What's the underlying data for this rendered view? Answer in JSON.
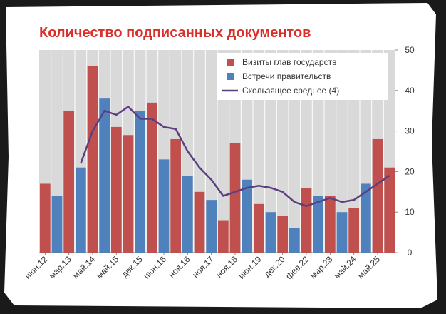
{
  "chart_data": {
    "type": "bar",
    "title": "Количество подписанных документов",
    "categories": [
      "июн.12",
      null,
      "мар.13",
      null,
      "май.14",
      null,
      "май.15",
      null,
      "дек.15",
      null,
      "июн.16",
      null,
      "ноя.16",
      null,
      "ноя.17",
      null,
      "ноя.18",
      null,
      "июн.19",
      null,
      "дек.20",
      null,
      "фев.22",
      null,
      "мар.23",
      null,
      "май.24",
      null,
      "май.25",
      null
    ],
    "series": [
      {
        "name": "Визиты глав государств",
        "color": "#c0504d",
        "values": [
          17,
          null,
          35,
          null,
          46,
          null,
          31,
          29,
          null,
          37,
          null,
          28,
          null,
          15,
          null,
          8,
          27,
          null,
          12,
          null,
          9,
          null,
          16,
          null,
          14,
          null,
          11,
          null,
          28,
          21
        ]
      },
      {
        "name": "Встречи правительств",
        "color": "#4f81bd",
        "values": [
          null,
          14,
          null,
          21,
          null,
          38,
          null,
          null,
          35,
          null,
          23,
          null,
          19,
          null,
          13,
          null,
          null,
          18,
          null,
          10,
          null,
          6,
          null,
          14,
          null,
          10,
          null,
          17,
          null,
          null
        ]
      },
      {
        "name": "Скользящее среднее (4)",
        "type": "line",
        "color": "#5b3f7f",
        "values": [
          null,
          null,
          null,
          22,
          30,
          35,
          34,
          36,
          33,
          33,
          31,
          30.5,
          25,
          21,
          18,
          14,
          15,
          16,
          16.5,
          16,
          15,
          12.5,
          11.5,
          12.5,
          13.5,
          12.5,
          13,
          15,
          17,
          19
        ]
      }
    ],
    "ylim": [
      0,
      50
    ],
    "yticks": [
      0,
      10,
      20,
      30,
      40,
      50
    ]
  }
}
